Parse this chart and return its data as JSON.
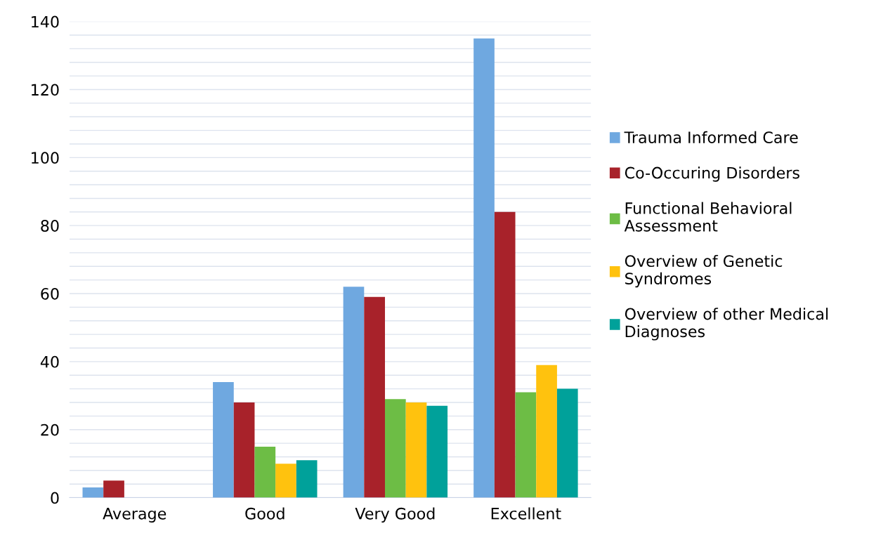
{
  "chart_data": {
    "type": "bar",
    "categories": [
      "Average",
      "Good",
      "Very Good",
      "Excellent"
    ],
    "series": [
      {
        "name": "Trauma Informed Care",
        "color": "#6fa8e0",
        "values": [
          3,
          34,
          62,
          135
        ]
      },
      {
        "name": "Co-Occuring Disorders",
        "color": "#a8222a",
        "values": [
          5,
          28,
          59,
          84
        ]
      },
      {
        "name": "Functional Behavioral Assessment",
        "color": "#6dbd45",
        "values": [
          0,
          15,
          29,
          31
        ]
      },
      {
        "name": "Overview of Genetic Syndromes",
        "color": "#ffc20e",
        "values": [
          0,
          10,
          28,
          39
        ]
      },
      {
        "name": "Overview of other Medical Diagnoses",
        "color": "#00a19a",
        "values": [
          0,
          11,
          27,
          32
        ]
      }
    ],
    "ylim": [
      0,
      140
    ],
    "yticks": [
      0,
      {
        "value": 4,
        "label": null
      },
      {
        "value": 8,
        "label": null
      },
      {
        "value": 12,
        "label": null
      },
      {
        "value": 16,
        "label": null
      },
      20,
      {
        "value": 24,
        "label": null
      },
      {
        "value": 28,
        "label": null
      },
      {
        "value": 32,
        "label": null
      },
      {
        "value": 36,
        "label": null
      },
      40,
      {
        "value": 44,
        "label": null
      },
      {
        "value": 48,
        "label": null
      },
      {
        "value": 52,
        "label": null
      },
      {
        "value": 56,
        "label": null
      },
      60,
      {
        "value": 64,
        "label": null
      },
      {
        "value": 68,
        "label": null
      },
      {
        "value": 72,
        "label": null
      },
      {
        "value": 76,
        "label": null
      },
      80,
      {
        "value": 84,
        "label": null
      },
      {
        "value": 88,
        "label": null
      },
      {
        "value": 92,
        "label": null
      },
      {
        "value": 96,
        "label": null
      },
      100,
      {
        "value": 104,
        "label": null
      },
      {
        "value": 108,
        "label": null
      },
      {
        "value": 112,
        "label": null
      },
      {
        "value": 116,
        "label": null
      },
      120,
      {
        "value": 124,
        "label": null
      },
      {
        "value": 128,
        "label": null
      },
      {
        "value": 132,
        "label": null
      },
      {
        "value": 136,
        "label": null
      },
      140
    ],
    "grid": "y",
    "legend": "right"
  }
}
